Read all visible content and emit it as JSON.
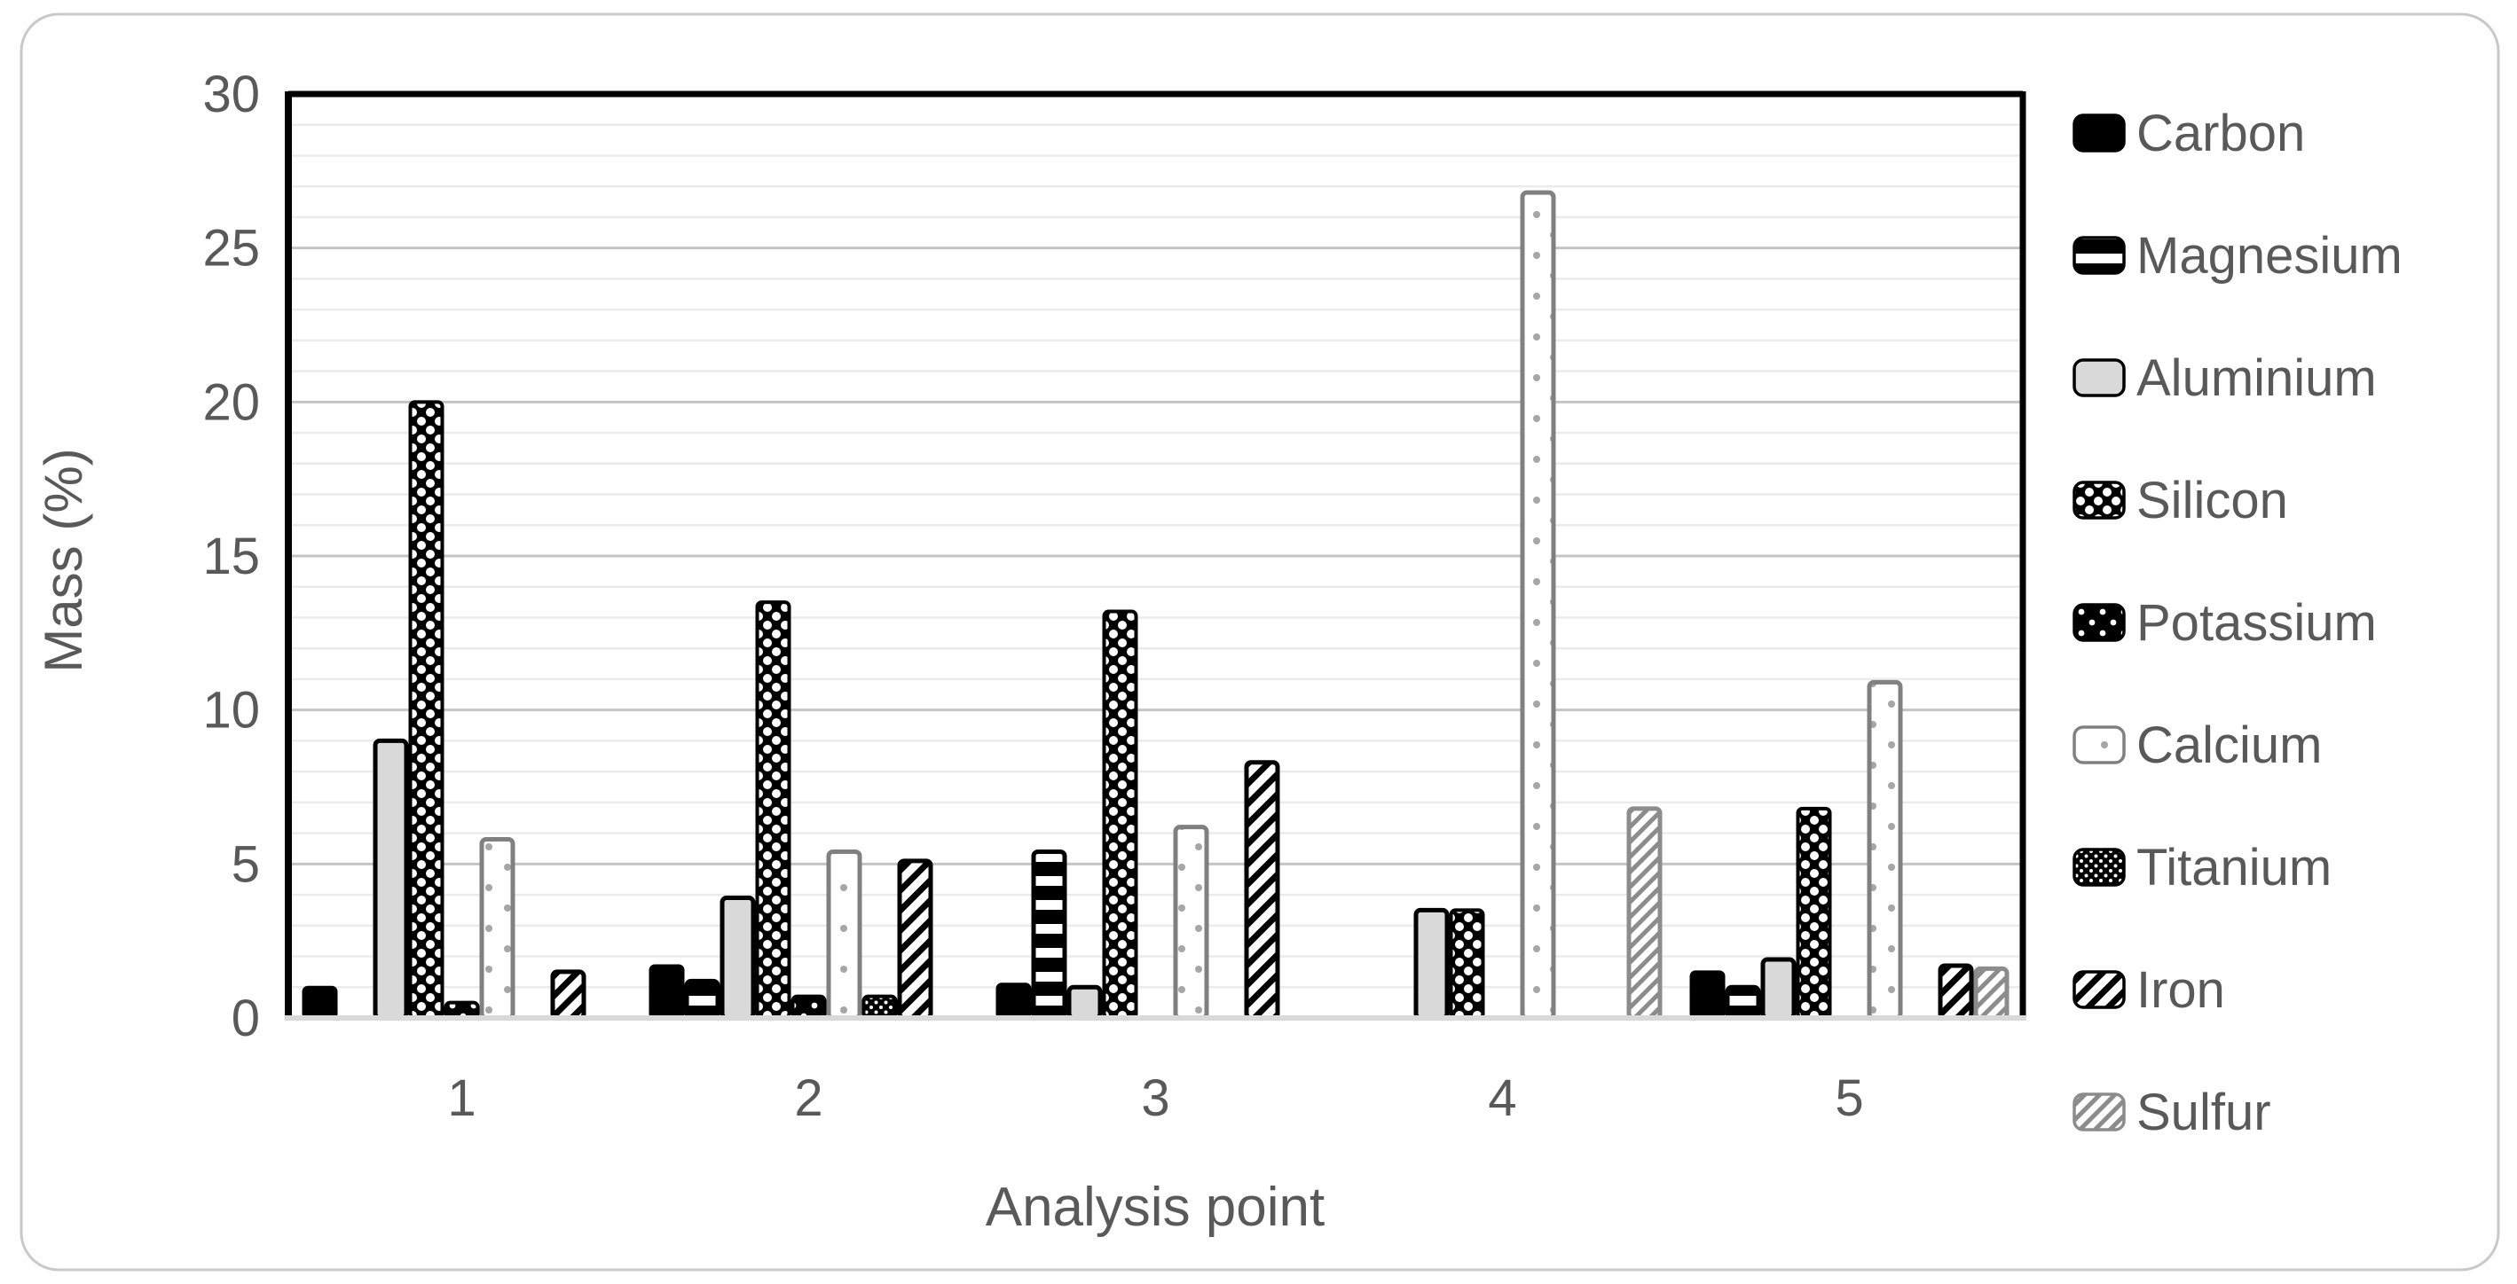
{
  "figure": {
    "background": "#ffffff",
    "outer_border_color": "#c9c9c9",
    "plot_frame_color": "#000000",
    "baseline_color": "#d9d9d9",
    "major_grid_color": "#c4c4c4",
    "minor_grid_color": "#ebebeb",
    "text_color": "#595959"
  },
  "chart_data": {
    "type": "bar",
    "title": "",
    "xlabel": "Analysis point",
    "ylabel": "Mass (%)",
    "categories": [
      "1",
      "2",
      "3",
      "4",
      "5"
    ],
    "ylim": [
      0,
      30
    ],
    "yticks": [
      0,
      5,
      10,
      15,
      20,
      25,
      30
    ],
    "minor_unit": 1,
    "grid": "horizontal major+minor",
    "legend_position": "right",
    "series": [
      {
        "name": "Carbon",
        "pattern": "solid-black",
        "values": [
          1.0,
          1.7,
          1.1,
          0,
          1.5
        ]
      },
      {
        "name": "Magnesium",
        "pattern": "black-white-h-stripes",
        "values": [
          0,
          1.2,
          5.4,
          0,
          1.0
        ]
      },
      {
        "name": "Aluminium",
        "pattern": "light-gray-black-border",
        "values": [
          9.0,
          3.9,
          1.0,
          3.5,
          1.9
        ]
      },
      {
        "name": "Silicon",
        "pattern": "black-white-dot-checker",
        "values": [
          20.0,
          13.5,
          13.2,
          3.5,
          6.8
        ]
      },
      {
        "name": "Potassium",
        "pattern": "black-small-dot-checker",
        "values": [
          0.5,
          0.7,
          0,
          0,
          0
        ]
      },
      {
        "name": "Calcium",
        "pattern": "white-gray-border-dots",
        "values": [
          5.8,
          5.4,
          6.2,
          26.8,
          10.9
        ]
      },
      {
        "name": "Titanium",
        "pattern": "black-fine-dot-grid",
        "values": [
          0,
          0.7,
          0,
          0,
          0
        ]
      },
      {
        "name": "Iron",
        "pattern": "white-black-diagonal",
        "values": [
          1.5,
          5.1,
          8.3,
          0,
          1.7
        ]
      },
      {
        "name": "Sulfur",
        "pattern": "white-gray-diagonal",
        "values": [
          0,
          0,
          0,
          6.8,
          1.6
        ]
      }
    ]
  }
}
